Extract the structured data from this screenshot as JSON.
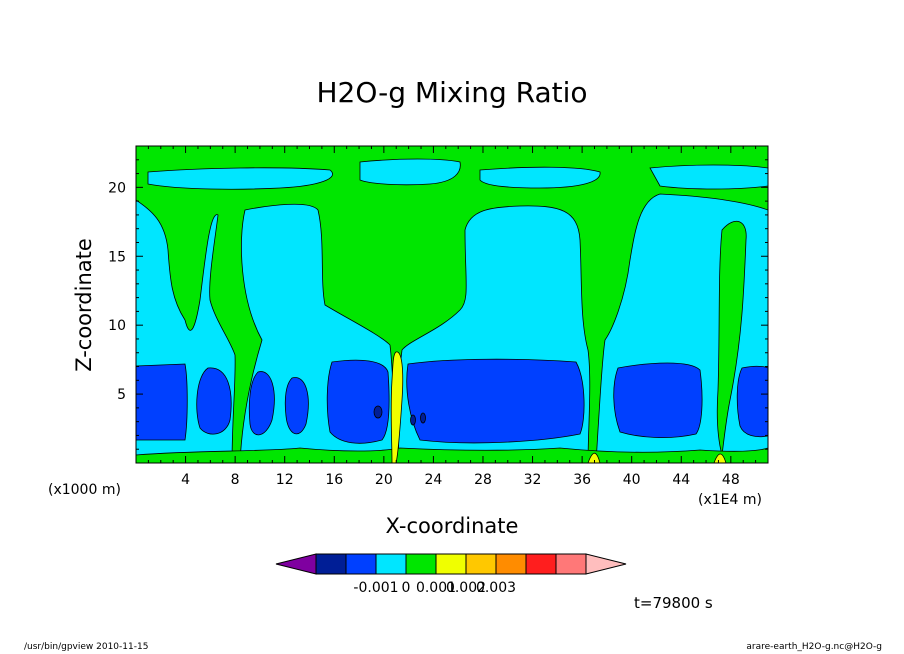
{
  "chart_data": {
    "type": "heatmap",
    "title": "H2O-g Mixing Ratio",
    "xlabel": "X-coordinate",
    "ylabel": "Z-coordinate",
    "x_unit_left": "(x1000 m)",
    "x_unit_right": "(x1E4 m)",
    "xlim": [
      0,
      51
    ],
    "ylim": [
      0,
      23
    ],
    "x_ticks": [
      4,
      8,
      12,
      16,
      20,
      24,
      28,
      32,
      36,
      40,
      44,
      48
    ],
    "y_ticks": [
      5,
      10,
      15,
      20
    ],
    "colorbar": {
      "colors": [
        "#7f00a0",
        "#001e96",
        "#0040ff",
        "#00e6ff",
        "#00e600",
        "#f0ff00",
        "#ffc800",
        "#ff8c00",
        "#ff1e1e",
        "#ff7878",
        "#ffbebe"
      ],
      "labels": [
        "-0.001",
        "0",
        "0.001",
        "0.002",
        "0.003"
      ]
    },
    "annotation": "t=79800 s"
  },
  "footer": {
    "left": "/usr/bin/gpview   2010-11-15",
    "right": "arare-earth_H2O-g.nc@H2O-g"
  }
}
